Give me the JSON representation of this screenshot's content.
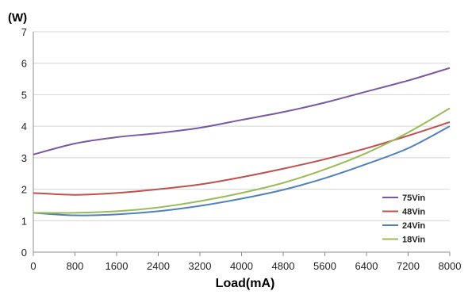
{
  "chart_data": {
    "type": "line",
    "title": "",
    "ylabel": "(W)",
    "xlabel": "Load(mA)",
    "x_ticks": [
      "0",
      "800",
      "1600",
      "2400",
      "3200",
      "4000",
      "4800",
      "5600",
      "6400",
      "7200",
      "8000"
    ],
    "y_ticks": [
      "0",
      "1",
      "2",
      "3",
      "4",
      "5",
      "6",
      "7"
    ],
    "xlim": [
      0,
      8000
    ],
    "ylim": [
      0,
      7
    ],
    "grid": "horizontal",
    "legend_position": "bottom-right",
    "x": [
      0,
      800,
      1600,
      2400,
      3200,
      4000,
      4800,
      5600,
      6400,
      7200,
      8000
    ],
    "series": [
      {
        "name": "75Vin",
        "color": "#7a57a3",
        "values": [
          3.1,
          3.45,
          3.65,
          3.78,
          3.95,
          4.2,
          4.45,
          4.75,
          5.1,
          5.45,
          5.85
        ]
      },
      {
        "name": "48Vin",
        "color": "#c0504d",
        "values": [
          1.88,
          1.82,
          1.88,
          2.0,
          2.15,
          2.38,
          2.65,
          2.95,
          3.3,
          3.7,
          4.13
        ]
      },
      {
        "name": "24Vin",
        "color": "#4f81bd",
        "values": [
          1.25,
          1.17,
          1.2,
          1.3,
          1.47,
          1.7,
          1.98,
          2.35,
          2.8,
          3.3,
          4.0
        ]
      },
      {
        "name": "18Vin",
        "color": "#9bbb59",
        "values": [
          1.25,
          1.25,
          1.3,
          1.42,
          1.62,
          1.88,
          2.2,
          2.63,
          3.15,
          3.8,
          4.57
        ]
      }
    ]
  }
}
